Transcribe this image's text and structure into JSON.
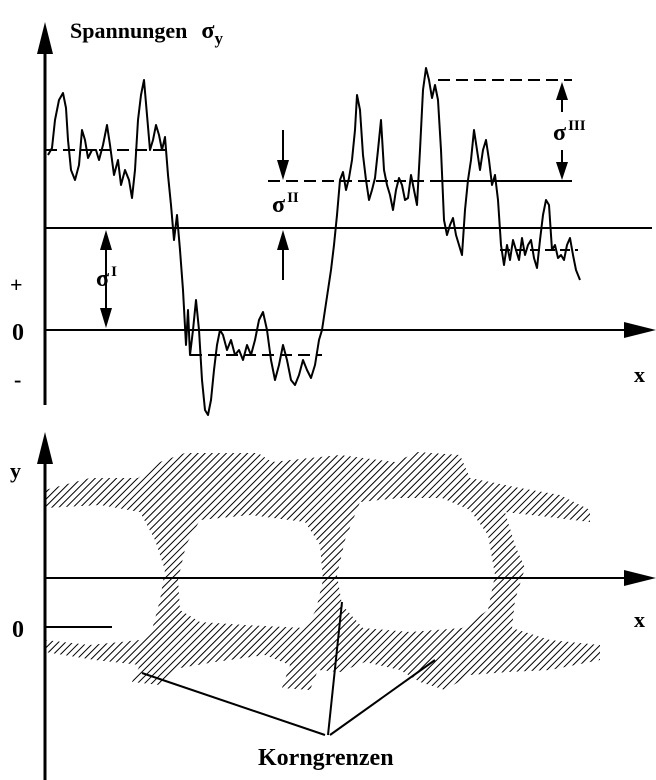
{
  "top_diagram": {
    "y_axis_title": "Spannungen",
    "y_axis_symbol": "σ",
    "y_axis_subscript": "y",
    "x_axis_label": "x",
    "zero_label": "0",
    "plus_label": "+",
    "minus_label": "-",
    "sigma_labels": [
      {
        "symbol": "σ",
        "order": "I"
      },
      {
        "symbol": "σ",
        "order": "II"
      },
      {
        "symbol": "σ",
        "order": "III"
      }
    ]
  },
  "bottom_diagram": {
    "y_axis_label": "y",
    "x_axis_label": "x",
    "zero_label": "0",
    "callout_label": "Korngrenzen"
  },
  "colors": {
    "ink": "#000000",
    "paper": "#ffffff"
  }
}
